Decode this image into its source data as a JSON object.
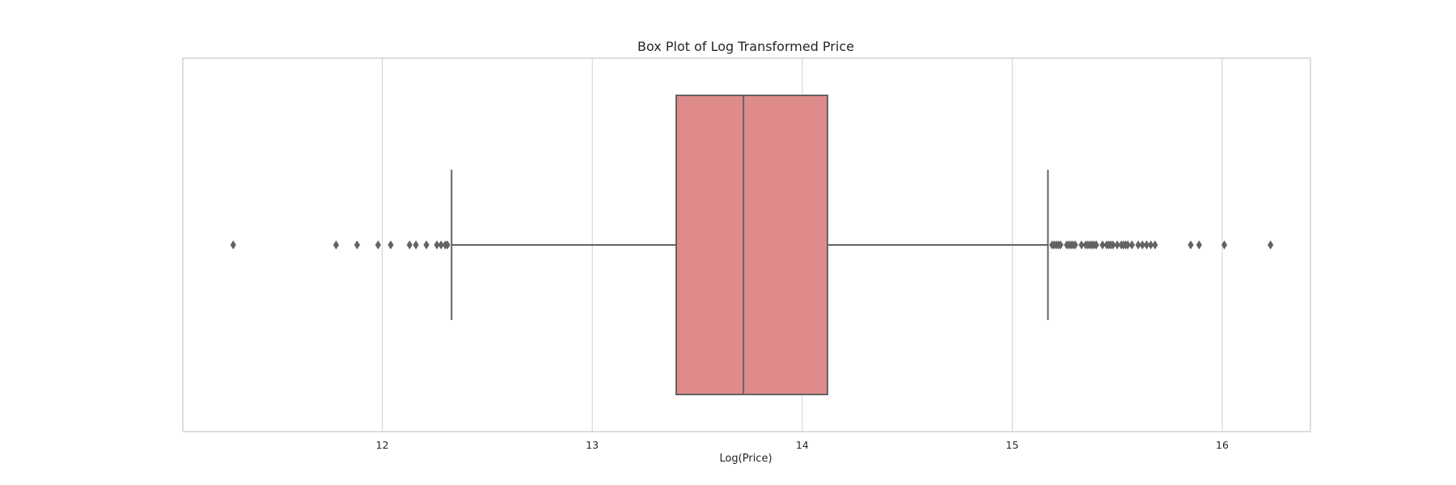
{
  "chart_data": {
    "type": "box",
    "title": "Box Plot of Log Transformed Price",
    "xlabel": "Log(Price)",
    "ylabel": "",
    "orientation": "horizontal",
    "xlim": [
      11.05,
      16.42
    ],
    "xticks": [
      12,
      13,
      14,
      15,
      16
    ],
    "grid": "vertical",
    "colors": {
      "box": "#e08b8b",
      "line": "#636363",
      "grid": "#d0d0d0",
      "frame": "#c8c8c8"
    },
    "box": {
      "whisker_low": 12.33,
      "q1": 13.4,
      "median": 13.72,
      "q3": 14.12,
      "whisker_high": 15.17,
      "outliers": [
        11.29,
        11.78,
        11.88,
        11.98,
        12.04,
        12.13,
        12.16,
        12.21,
        12.26,
        12.28,
        12.3,
        12.31,
        15.19,
        15.2,
        15.21,
        15.22,
        15.23,
        15.26,
        15.27,
        15.28,
        15.29,
        15.3,
        15.33,
        15.35,
        15.36,
        15.37,
        15.38,
        15.39,
        15.4,
        15.43,
        15.45,
        15.46,
        15.47,
        15.48,
        15.5,
        15.52,
        15.53,
        15.54,
        15.55,
        15.57,
        15.6,
        15.62,
        15.64,
        15.66,
        15.68,
        15.85,
        15.89,
        16.01,
        16.23
      ]
    }
  }
}
